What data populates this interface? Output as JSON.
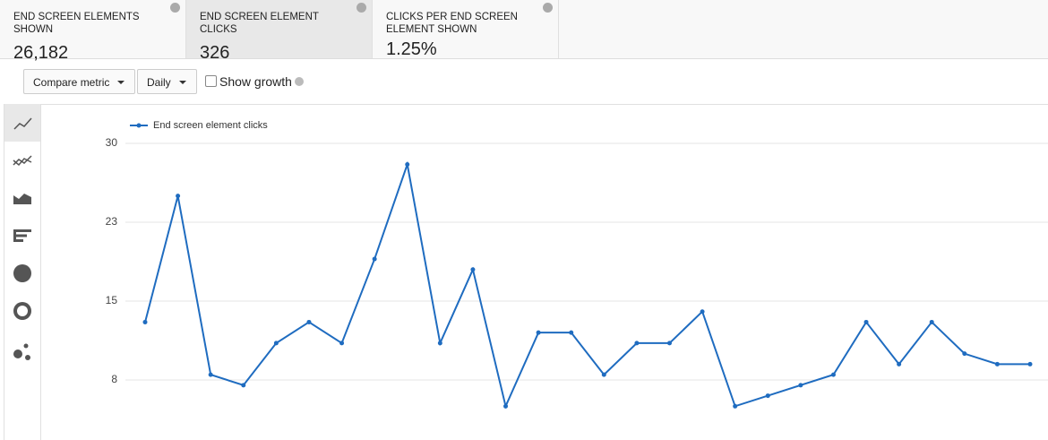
{
  "metrics": [
    {
      "title": "END SCREEN ELEMENTS SHOWN",
      "value": "26,182"
    },
    {
      "title": "END SCREEN ELEMENT CLICKS",
      "value": "326"
    },
    {
      "title": "CLICKS PER END SCREEN ELEMENT SHOWN",
      "value": "1.25%"
    }
  ],
  "controls": {
    "compare": "Compare metric",
    "interval": "Daily",
    "growth": "Show growth"
  },
  "chart_data": {
    "type": "line",
    "categories": [
      null,
      null,
      null,
      null,
      null,
      null,
      null,
      null,
      null,
      null,
      null,
      null,
      null,
      null,
      null,
      null,
      null,
      null,
      null,
      null,
      null,
      null,
      null,
      null,
      null,
      null,
      null,
      null
    ],
    "series": [
      {
        "name": "End screen element clicks",
        "color": "#1f6cc0",
        "values": [
          13,
          25,
          8,
          7,
          11,
          13,
          11,
          19,
          28,
          11,
          18,
          5,
          12,
          12,
          8,
          11,
          11,
          14,
          5,
          6,
          7,
          8,
          13,
          9,
          13,
          10,
          9,
          9
        ]
      }
    ],
    "ylim": [
      2,
      31
    ],
    "yticks": [
      {
        "value": 7.5,
        "label": "8"
      },
      15,
      {
        "value": 22.5,
        "label": "23"
      },
      30
    ],
    "grid": true
  }
}
